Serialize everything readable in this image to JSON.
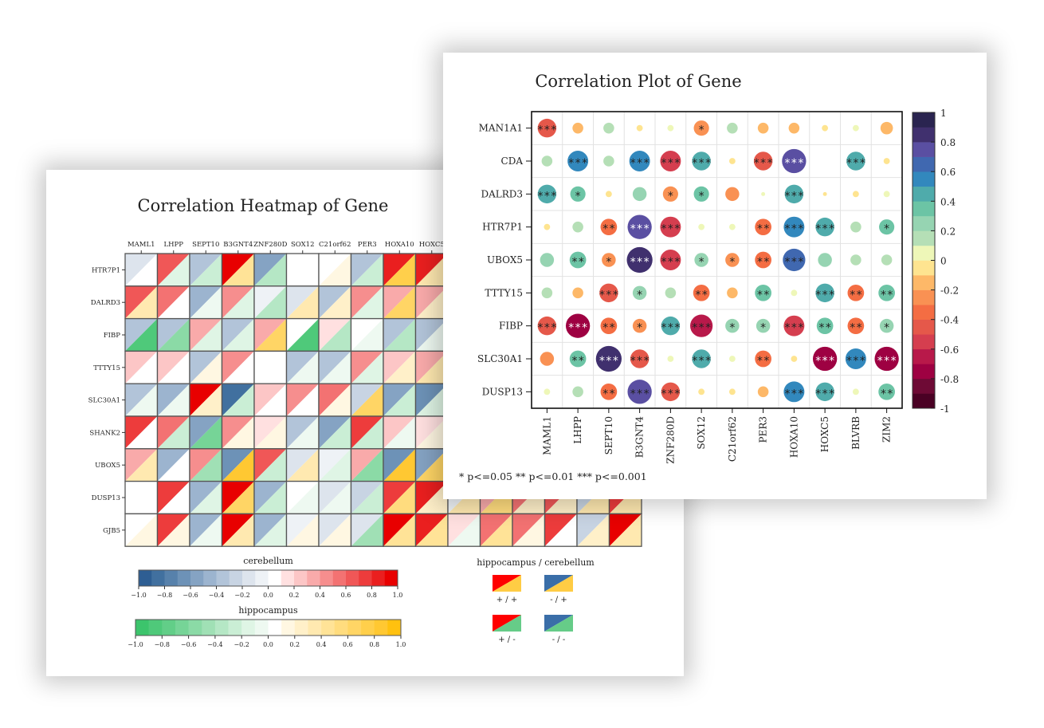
{
  "chart_data": [
    {
      "type": "heatmap",
      "title": "Correlation Heatmap of Gene",
      "columns": [
        "MAML1",
        "LHPP",
        "SEPT10",
        "B3GNT4",
        "ZNF280D",
        "SOX12",
        "C21orf62",
        "PER3",
        "HOXA10",
        "HOXC5"
      ],
      "column_count": 16,
      "rows": [
        "HTR7P1",
        "DALRD3",
        "FIBP",
        "TTTY15",
        "SLC30A1",
        "SHANK2",
        "UBOX5",
        "DUSP13",
        "GJB5"
      ],
      "value_note": "each cell: [cerebellum, hippocampus]; null = hidden behind the other chart",
      "values": [
        [
          [
            -0.2,
            0.0
          ],
          [
            0.6,
            -0.2
          ],
          [
            -0.4,
            -0.3
          ],
          [
            0.9,
            0.4
          ],
          [
            -0.6,
            -0.4
          ],
          [
            0.0,
            0.0
          ],
          [
            0.0,
            0.1
          ],
          [
            -0.4,
            -0.3
          ],
          [
            0.8,
            0.7
          ],
          [
            0.8,
            0.3
          ],
          null,
          null,
          null,
          null,
          null,
          null
        ],
        [
          [
            0.6,
            0.3
          ],
          [
            0.5,
            0.0
          ],
          [
            -0.5,
            -0.1
          ],
          [
            0.4,
            -0.2
          ],
          [
            -0.1,
            -0.4
          ],
          [
            -0.2,
            0.3
          ],
          [
            -0.4,
            0.2
          ],
          [
            0.4,
            -0.2
          ],
          [
            0.3,
            0.6
          ],
          [
            0.3,
            0.2
          ],
          null,
          null,
          null,
          null,
          null,
          null
        ],
        [
          [
            -0.4,
            -0.8
          ],
          [
            -0.4,
            -0.6
          ],
          [
            0.3,
            -0.2
          ],
          [
            -0.4,
            -0.2
          ],
          [
            0.3,
            0.6
          ],
          [
            0.0,
            -0.8
          ],
          [
            0.1,
            -0.4
          ],
          [
            0.0,
            -0.1
          ],
          [
            -0.4,
            -0.4
          ],
          [
            -0.4,
            -0.1
          ],
          null,
          null,
          null,
          null,
          null,
          null
        ],
        [
          [
            0.2,
            0.0
          ],
          [
            0.2,
            0.0
          ],
          [
            -0.4,
            0.1
          ],
          [
            0.4,
            0.0
          ],
          [
            0.0,
            0.0
          ],
          [
            -0.4,
            -0.1
          ],
          [
            -0.4,
            -0.1
          ],
          [
            0.4,
            -0.2
          ],
          [
            0.2,
            0.2
          ],
          [
            0.3,
            0.3
          ],
          null,
          null,
          null,
          null,
          null,
          null
        ],
        [
          [
            -0.4,
            -0.1
          ],
          [
            -0.5,
            -0.1
          ],
          [
            0.9,
            0.2
          ],
          [
            -0.8,
            -0.3
          ],
          [
            0.2,
            0.0
          ],
          [
            0.4,
            0.0
          ],
          [
            0.5,
            0.1
          ],
          [
            -0.3,
            0.6
          ],
          [
            -0.6,
            -0.3
          ],
          [
            -0.7,
            -0.2
          ],
          null,
          null,
          null,
          null,
          null,
          null
        ],
        [
          [
            0.7,
            0.0
          ],
          [
            0.5,
            -0.3
          ],
          [
            -0.6,
            -0.7
          ],
          [
            0.4,
            0.1
          ],
          [
            0.1,
            0.1
          ],
          [
            -0.4,
            -0.1
          ],
          [
            -0.6,
            -0.3
          ],
          [
            0.7,
            -0.3
          ],
          [
            0.2,
            -0.1
          ],
          [
            0.1,
            0.1
          ],
          null,
          null,
          null,
          null,
          null,
          null
        ],
        [
          [
            0.3,
            0.3
          ],
          [
            -0.5,
            0.0
          ],
          [
            0.4,
            -0.5
          ],
          [
            -0.7,
            0.8
          ],
          [
            0.6,
            -0.3
          ],
          [
            -0.2,
            0.3
          ],
          [
            -0.1,
            -0.2
          ],
          [
            0.3,
            -0.6
          ],
          [
            -0.7,
            0.8
          ],
          [
            -0.6,
            0.6
          ],
          null,
          null,
          null,
          null,
          null,
          null
        ],
        [
          [
            0.0,
            0.0
          ],
          [
            0.7,
            0.0
          ],
          [
            -0.5,
            -0.2
          ],
          [
            1.0,
            0.6
          ],
          [
            -0.5,
            -0.3
          ],
          [
            0.0,
            -0.1
          ],
          [
            -0.2,
            -0.1
          ],
          [
            -0.3,
            -0.3
          ],
          [
            0.7,
            0.5
          ],
          [
            0.8,
            0.2
          ],
          [
            -0.1,
            0.3
          ],
          [
            0.3,
            0.5
          ],
          [
            0.5,
            0.2
          ],
          [
            0.6,
            0.2
          ],
          [
            -0.3,
            0.3
          ],
          [
            0.7,
            0.3
          ]
        ],
        [
          [
            0.0,
            0.1
          ],
          [
            0.7,
            0.1
          ],
          [
            -0.5,
            -0.1
          ],
          [
            0.9,
            0.3
          ],
          [
            -0.5,
            -0.2
          ],
          [
            -0.1,
            0.1
          ],
          [
            -0.2,
            0.1
          ],
          [
            -0.2,
            -0.5
          ],
          [
            0.9,
            0.4
          ],
          [
            0.8,
            0.4
          ],
          [
            0.1,
            -0.1
          ],
          [
            0.5,
            0.4
          ],
          [
            0.5,
            0.1
          ],
          [
            0.7,
            0.0
          ],
          [
            -0.3,
            0.2
          ],
          [
            0.9,
            0.3
          ]
        ]
      ],
      "legend": {
        "cerebellum": {
          "title": "cerebellum",
          "ticks": [
            "−1.0",
            "−0.8",
            "−0.6",
            "−0.4",
            "−0.2",
            "0.0",
            "0.2",
            "0.4",
            "0.6",
            "0.8",
            "1.0"
          ],
          "range": [
            -1,
            1
          ],
          "colors": [
            "#2e5e93",
            "#41709f",
            "#5781ab",
            "#6d92b7",
            "#85a3c3",
            "#9cb4cf",
            "#b2c4d9",
            "#c8d4e3",
            "#dde4ed",
            "#eef2f6",
            "#ffffff",
            "#ffe0e0",
            "#fcc6c6",
            "#f9aaaa",
            "#f68e8e",
            "#f37272",
            "#f05757",
            "#ed3c3c",
            "#ea1f1f",
            "#e80000"
          ]
        },
        "hippocampus": {
          "title": "hippocampus",
          "ticks": [
            "−1.0",
            "−0.8",
            "−0.6",
            "−0.4",
            "−0.2",
            "0.0",
            "0.2",
            "0.4",
            "0.6",
            "0.8",
            "1.0"
          ],
          "range": [
            -1,
            1
          ],
          "colors": [
            "#3cc46c",
            "#4fc97a",
            "#62ce88",
            "#76d497",
            "#8bdaa6",
            "#a0e0b5",
            "#b5e7c5",
            "#caeed5",
            "#dff5e5",
            "#eef9f1",
            "#ffffff",
            "#fff7e2",
            "#fff0c9",
            "#ffe9b0",
            "#ffe397",
            "#ffdc7e",
            "#ffd565",
            "#ffcf4b",
            "#ffc832",
            "#ffc10f"
          ]
        },
        "combo": {
          "title": "hippocampus / cerebellum",
          "items": [
            {
              "label": "+ / +",
              "upper": "#ff0000",
              "lower": "#ffcc44"
            },
            {
              "label": "- / +",
              "upper": "#3a6ea8",
              "lower": "#ffcc44"
            },
            {
              "label": "+ / -",
              "upper": "#ff0000",
              "lower": "#66cc88"
            },
            {
              "label": "- / -",
              "upper": "#3a6ea8",
              "lower": "#66cc88"
            }
          ]
        }
      }
    },
    {
      "type": "scatter",
      "subtype": "correlation-circle-matrix",
      "title": "Correlation Plot of Gene",
      "columns": [
        "MAML1",
        "LHPP",
        "SEPT10",
        "B3GNT4",
        "ZNF280D",
        "SOX12",
        "C21orf62",
        "PER3",
        "HOXA10",
        "HOXC5",
        "BLVRB",
        "ZIM2"
      ],
      "rows": [
        "MAN1A1",
        "CDA",
        "DALRD3",
        "HTR7P1",
        "UBOX5",
        "TTTY15",
        "FIBP",
        "SLC30A1",
        "DUSP13"
      ],
      "values": [
        [
          -0.45,
          -0.15,
          0.15,
          -0.05,
          0.05,
          -0.3,
          0.15,
          -0.15,
          -0.15,
          -0.05,
          0.05,
          -0.2
        ],
        [
          0.15,
          0.55,
          0.15,
          0.55,
          -0.55,
          0.45,
          -0.05,
          -0.45,
          0.75,
          0.0,
          0.45,
          -0.05
        ],
        [
          0.45,
          0.3,
          -0.05,
          0.25,
          -0.3,
          0.3,
          -0.25,
          0.02,
          0.45,
          -0.02,
          -0.05,
          0.05
        ],
        [
          -0.05,
          0.15,
          -0.35,
          0.75,
          -0.55,
          0.05,
          0.05,
          -0.35,
          0.55,
          0.45,
          0.15,
          0.3
        ],
        [
          0.25,
          0.35,
          -0.25,
          0.85,
          -0.55,
          0.25,
          -0.25,
          -0.35,
          0.65,
          0.25,
          0.15,
          0.15
        ],
        [
          0.15,
          -0.15,
          -0.45,
          0.25,
          0.15,
          -0.35,
          -0.15,
          0.35,
          0.05,
          0.45,
          -0.35,
          0.35
        ],
        [
          -0.45,
          -0.75,
          -0.35,
          -0.25,
          0.45,
          -0.65,
          0.25,
          0.25,
          -0.55,
          0.35,
          -0.35,
          0.25
        ],
        [
          -0.25,
          0.35,
          0.85,
          -0.45,
          0.05,
          0.45,
          0.05,
          -0.35,
          -0.05,
          -0.75,
          0.55,
          -0.75
        ],
        [
          0.05,
          0.15,
          -0.35,
          0.75,
          -0.45,
          -0.05,
          -0.05,
          -0.15,
          0.55,
          0.45,
          0.05,
          0.35
        ]
      ],
      "significance": [
        [
          "***",
          "",
          "",
          "",
          "",
          "*",
          "",
          "",
          "",
          "",
          "",
          ""
        ],
        [
          "",
          "***",
          "",
          "***",
          "***",
          "***",
          "",
          "***",
          "***",
          "",
          "***",
          ""
        ],
        [
          "***",
          "*",
          "",
          "",
          "*",
          "*",
          "",
          "",
          "***",
          "",
          "",
          ""
        ],
        [
          "",
          "",
          "**",
          "***",
          "***",
          "",
          "",
          "**",
          "***",
          "***",
          "",
          "*"
        ],
        [
          "",
          "**",
          "*",
          "***",
          "***",
          "*",
          "*",
          "**",
          "***",
          "",
          "",
          ""
        ],
        [
          "",
          "",
          "***",
          "*",
          "",
          "**",
          "",
          "**",
          "",
          "***",
          "**",
          "**"
        ],
        [
          "***",
          "***",
          "**",
          "*",
          "***",
          "***",
          "*",
          "*",
          "***",
          "**",
          "**",
          "*"
        ],
        [
          "",
          "**",
          "***",
          "***",
          "",
          "***",
          "",
          "**",
          "",
          "***",
          "***",
          "***"
        ],
        [
          "",
          "",
          "**",
          "***",
          "***",
          "",
          "",
          "",
          "***",
          "***",
          "",
          "**"
        ]
      ],
      "colorbar": {
        "range": [
          -1,
          1
        ],
        "ticks": [
          "1",
          "0.8",
          "0.6",
          "0.4",
          "0.2",
          "0",
          "-0.2",
          "-0.4",
          "-0.6",
          "-0.8",
          "-1"
        ],
        "colors": [
          "#4a0124",
          "#6e0a35",
          "#9e0142",
          "#b8194a",
          "#d53e4f",
          "#e5584a",
          "#f46d43",
          "#f99153",
          "#fdb868",
          "#fee490",
          "#eef7b8",
          "#b5dfb6",
          "#96d4b2",
          "#6cc4a5",
          "#4fabab",
          "#3288bd",
          "#4068b0",
          "#5a4fa2",
          "#40306e",
          "#2a2450"
        ]
      },
      "footnote": "* p<=0.05  ** p<=0.01  *** p<=0.001"
    }
  ]
}
